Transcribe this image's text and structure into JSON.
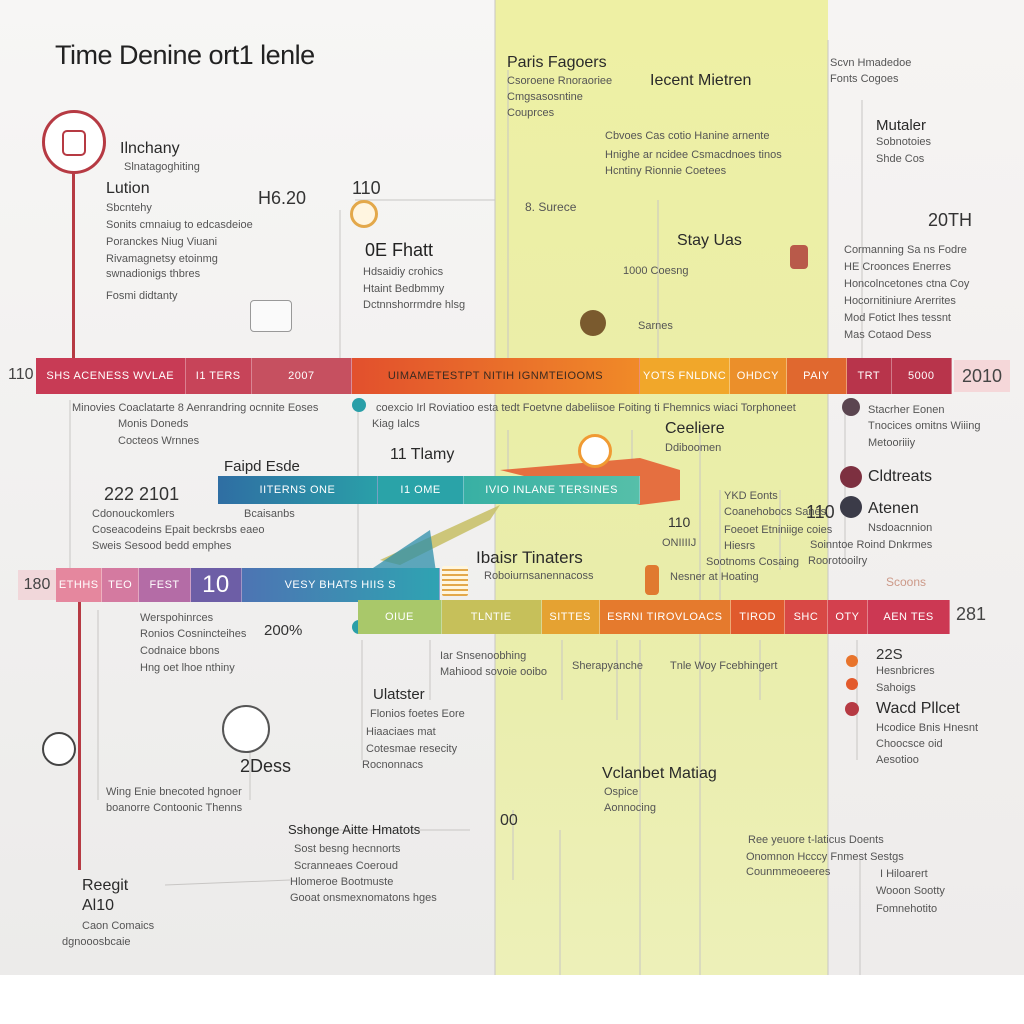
{
  "title": "Time Denine ort1 lenle",
  "colors": {
    "band": "#e9edaa",
    "accent_red": "#b63a43",
    "teal": "#2a9fa8",
    "orange": "#f0932c"
  },
  "top_left": {
    "h1": "Ilnchany",
    "s1": "Slnatagoghiting",
    "h2": "Lution",
    "s2": "Sbcntehy",
    "lines": [
      "Sonits cmnaiug to edcasdeioe",
      "Poranckes Niug Viuani",
      "Rivamagnetsy etoinmg",
      "swnadionigs thbres"
    ],
    "s3": "Fosmi didtanty"
  },
  "mid_left": {
    "year": "H6.20",
    "year2": "110",
    "h": "0E Fhatt",
    "lines": [
      "Hdsaidiy crohics",
      "Htaint Bedbmmy",
      "Dctnnshorrmdre hlsg"
    ]
  },
  "band_top": {
    "h1": "Paris Fagoers",
    "lines": [
      "Csoroene Rnoraoriee",
      "Cmgsasosntine",
      "Couprces"
    ],
    "h2": "Iecent Mietren",
    "notes": [
      "Cbvoes Cas cotio Hanine arnente",
      "Hnighe ar ncidee Csmacdnoes tinos",
      "Hcntiny Rionnie Coetees"
    ],
    "label": "8. Surece",
    "h3": "Stay Uas",
    "sub1": "1000 Coesng",
    "sub2": "Sarnes"
  },
  "right_top": {
    "lines1": [
      "Scvn Hmadedoe",
      "Fonts Cogoes"
    ],
    "h": "Mutaler",
    "lines2": [
      "Sobnotoies",
      "Shde Cos"
    ],
    "year": "20TH",
    "lines3": [
      "Cormanning Sa ns Fodre",
      "HE Croonces Enerres",
      "Honcolncetones ctna Coy",
      "Hocornitiniure Arerrites",
      "Mod Fotict lhes tessnt",
      "Mas Cotaod Dess"
    ]
  },
  "bar1": {
    "start": "110",
    "segs": [
      "SHS ACENESS WVLAE",
      "I1 TERS",
      "2007",
      "UIMAMETESTPT NITIH IGNMTEIOOMS",
      "YOTS FNLDNC",
      "OHDCY",
      "PAIY",
      "TRT",
      "5000"
    ],
    "end": "2010"
  },
  "under_bar1": {
    "left": [
      "Minovies Coaclatarte 8 Aenrandring ocnnite Eoses",
      "Monis Doneds",
      "Cocteos Wrnnes"
    ],
    "mid": [
      "coexcio Irl Roviatioo esta tedt Foetvne dabeliisoe Foiting ti Fhemnics wiaci Torphoneet",
      "Kiag Ialcs"
    ],
    "center_h": "Ceeliere",
    "center_s": "Ddiboomen",
    "right": [
      "Stacrher Eonen",
      "Tnocices omitns Wiiing",
      "Metooriiiy"
    ],
    "right_h1": "Cldtreats",
    "right_h2": "Atenen",
    "right_s": [
      "Nsdoacnnion",
      "Soinntoe Roind Dnkrmes",
      "Roorotooilry"
    ]
  },
  "bar2_area": {
    "h": "Faipd Esde",
    "mid_h": "11 Tlamy",
    "year": "222 2101",
    "segs": [
      "IITERNS ONE",
      "I1 OME",
      "IVIO INLANE TERSINES"
    ],
    "left_lines": [
      "Cdonouckomlers",
      "Coseacodeins Epait beckrsbs eaeo",
      "Sweis Sesood bedd emphes"
    ],
    "left_s": "Bcaisanbs",
    "note_a": [
      "YKD Eonts",
      "Coanehobocs Sanes"
    ],
    "note_b": [
      "Foeoet Etniniige coies",
      "Hiesrs",
      "Sootnoms Cosaing"
    ],
    "num": "110",
    "num2": "110",
    "onu": "ONIIIIJ",
    "h2": "Ibaisr Tinaters",
    "s2": "Roboiurnsanennacoss",
    "s3": "Nesner at Hoating"
  },
  "bar3": {
    "start": "180",
    "segs": [
      "ETHHS",
      "TEO",
      "FEST",
      "10",
      "VESY BHATS HIIS S",
      "OIUE",
      "TLNTIE",
      "SITTES",
      "ESRNI TIROVLOACS",
      "TIROD",
      "SHC",
      "OTY",
      "AEN TES"
    ],
    "end": "281",
    "right_s": "Scoons"
  },
  "below_bar3": {
    "left_lines": [
      "Werspohinrces",
      "Ronios Cosnincteihes",
      "Codnaice bbons",
      "Hng oet lhoe nthiny"
    ],
    "year": "200%",
    "mid": [
      "Iar Snsenoobhing",
      "Mahiood sovoie ooibo"
    ],
    "band": [
      "Sherapyanche",
      "Tnle Woy Fcebhingert"
    ],
    "right_year": "22S",
    "right_lines": [
      "Hesnbricres",
      "Sahoigs"
    ],
    "right_h": "Wacd Pllcet",
    "right_lines2": [
      "Hcodice Bnis Hnesnt",
      "Choocsce oid",
      "Aesotioo"
    ]
  },
  "lower": {
    "h1": "Ulatster",
    "lines1": [
      "Flonios foetes Eore",
      "Hiaaciaes mat",
      "Cotesmae resecity",
      "Rocnonnacs"
    ],
    "big": "2Dess",
    "left_lines": [
      "Wing Enie bnecoted hgnoer",
      "boanorre Contoonic Thenns"
    ],
    "h2": "Sshonge Aitte Hmatots",
    "lines2": [
      "Sost besng hecnnorts",
      "Scranneaes Coeroud",
      "Hlomeroe Bootmuste",
      "Gooat onsmexnomatons hges"
    ],
    "band_h": "Vclanbet Matiag",
    "band_s": [
      "Ospice",
      "Aonnocing"
    ],
    "num": "00",
    "band_lines": [
      "Ree yeuore t-laticus Doents",
      "Onomnon Hcccy Fnmest Sestgs",
      "Counmmeoeeres"
    ],
    "right_lines": [
      "I Hiloarert",
      "Wooon Sootty",
      "Fomnehotito"
    ],
    "bottom_h": "Reegit",
    "bottom_year": "Al10",
    "bottom_s": [
      "Caon Comaics",
      "dgnooosbcaie"
    ]
  }
}
